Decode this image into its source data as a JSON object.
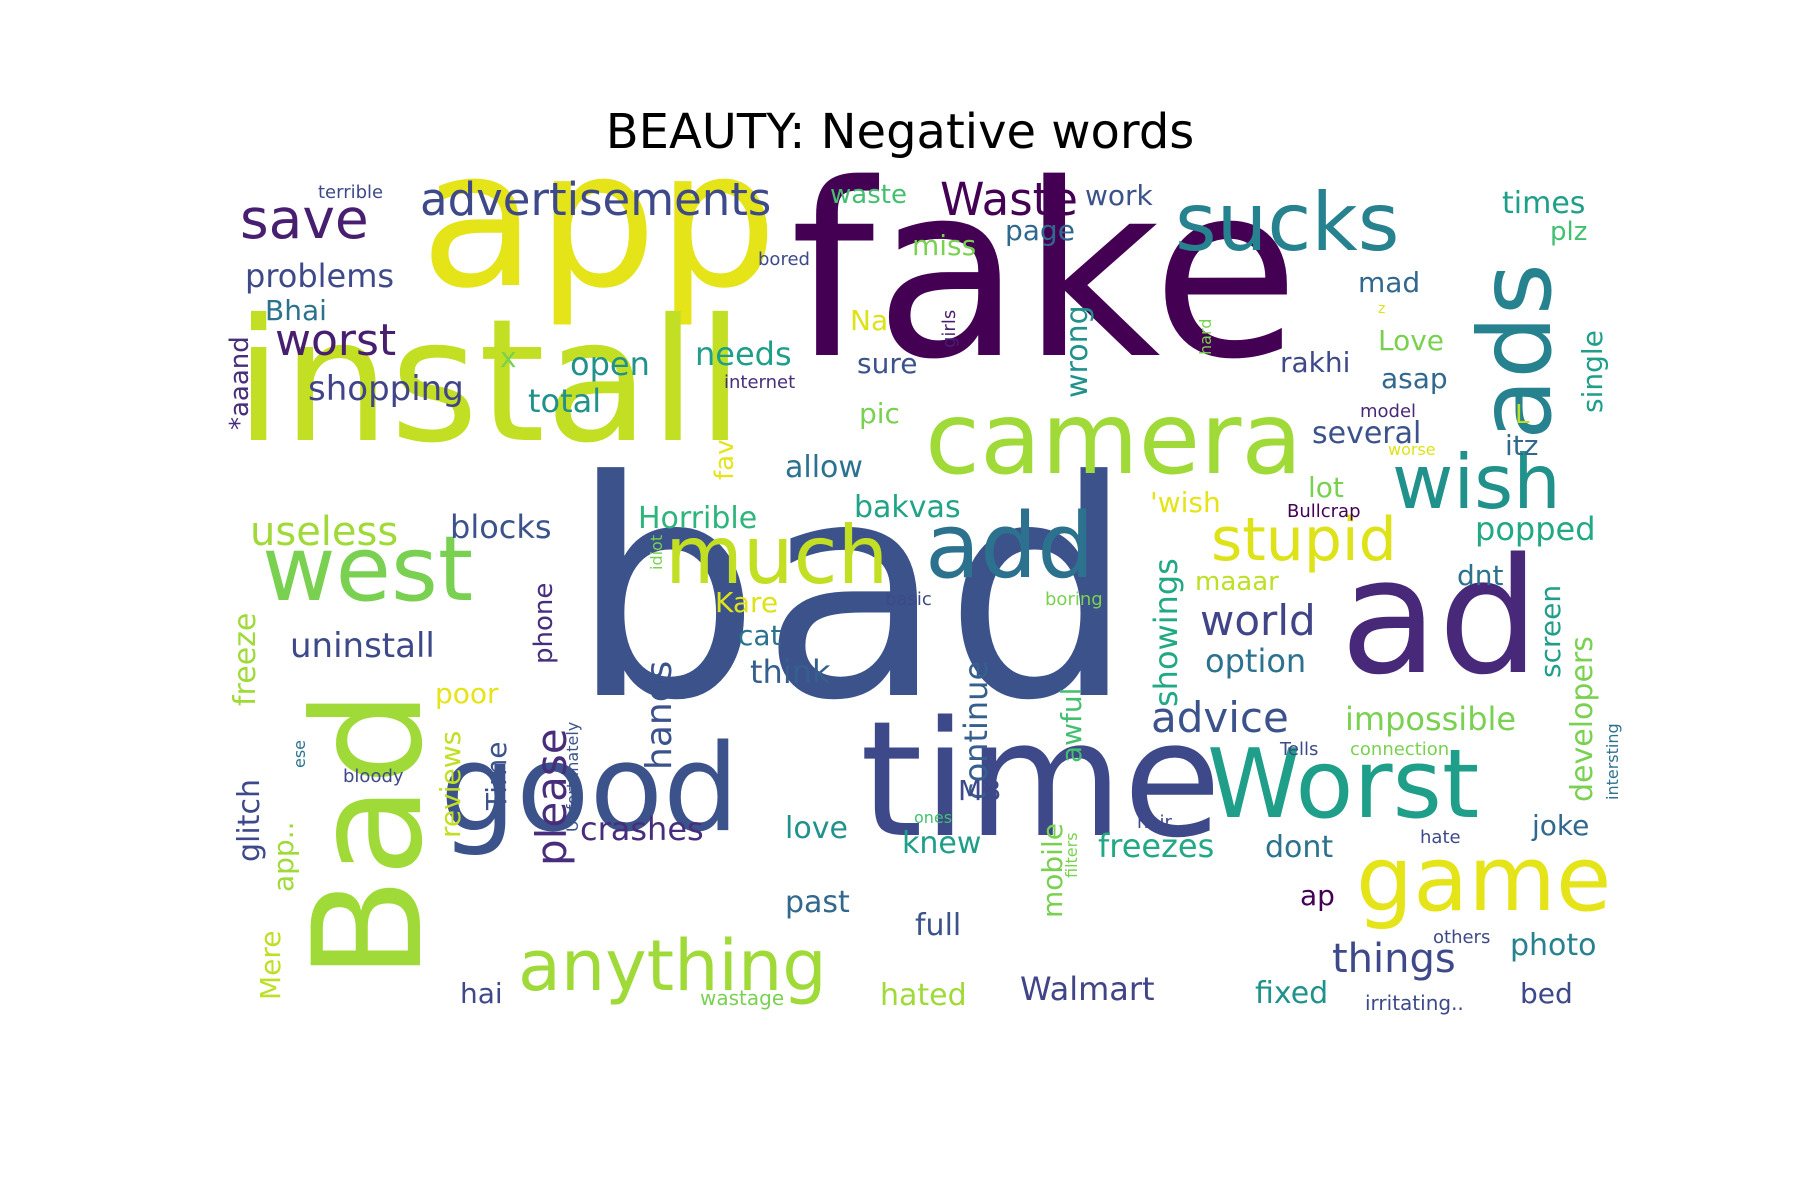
{
  "title": "BEAUTY: Negative words",
  "words": [
    {
      "text": "bad",
      "color": "#3b528b"
    },
    {
      "text": "fake",
      "color": "#440154"
    },
    {
      "text": "app",
      "color": "#e5e419"
    },
    {
      "text": "install",
      "color": "#c2df23"
    },
    {
      "text": "Bad",
      "color": "#a0da39"
    },
    {
      "text": "time",
      "color": "#3e4989"
    },
    {
      "text": "ad",
      "color": "#482878"
    },
    {
      "text": "good",
      "color": "#3b528b"
    },
    {
      "text": "ads",
      "color": "#26828e"
    },
    {
      "text": "camera",
      "color": "#a0da39"
    },
    {
      "text": "west",
      "color": "#7ad151"
    },
    {
      "text": "Worst",
      "color": "#1f9e89"
    },
    {
      "text": "game",
      "color": "#e5e419"
    },
    {
      "text": "add",
      "color": "#2c728e"
    },
    {
      "text": "much",
      "color": "#c2df23"
    },
    {
      "text": "sucks",
      "color": "#26828e"
    },
    {
      "text": "wish",
      "color": "#21918c"
    },
    {
      "text": "anything",
      "color": "#a0da39"
    },
    {
      "text": "stupid",
      "color": "#dde318"
    },
    {
      "text": "save",
      "color": "#481f70"
    },
    {
      "text": "advertisements",
      "color": "#3e4989"
    },
    {
      "text": "Waste",
      "color": "#440154"
    },
    {
      "text": "please",
      "color": "#472d7b"
    },
    {
      "text": "things",
      "color": "#3e4989"
    },
    {
      "text": "world",
      "color": "#414487"
    },
    {
      "text": "advice",
      "color": "#3b528b"
    },
    {
      "text": "worst",
      "color": "#481f70"
    },
    {
      "text": "useless",
      "color": "#a0da39"
    },
    {
      "text": "hangs",
      "color": "#3b528b"
    },
    {
      "text": "continue",
      "color": "#355f8d"
    },
    {
      "text": "developers",
      "color": "#7ad151"
    },
    {
      "text": "glitch",
      "color": "#3e4989"
    },
    {
      "text": "freeze",
      "color": "#a0da39"
    },
    {
      "text": "impossible",
      "color": "#7ad151"
    },
    {
      "text": "showings",
      "color": "#22a884"
    },
    {
      "text": "uninstall",
      "color": "#3e4989"
    },
    {
      "text": "shopping",
      "color": "#414487"
    },
    {
      "text": "problems",
      "color": "#3e4989"
    },
    {
      "text": "blocks",
      "color": "#3b528b"
    },
    {
      "text": "crashes",
      "color": "#472d7b"
    },
    {
      "text": "freezes",
      "color": "#22a884"
    },
    {
      "text": "option",
      "color": "#2c728e"
    },
    {
      "text": "think",
      "color": "#355f8d"
    },
    {
      "text": "popped",
      "color": "#22a884"
    },
    {
      "text": "Walmart",
      "color": "#414487"
    },
    {
      "text": "screen",
      "color": "#1f9e89"
    },
    {
      "text": "several",
      "color": "#3b528b"
    },
    {
      "text": "total",
      "color": "#21918c"
    },
    {
      "text": "open",
      "color": "#21918c"
    },
    {
      "text": "needs",
      "color": "#1f9e89"
    },
    {
      "text": "Horrible",
      "color": "#2fb47c"
    },
    {
      "text": "bakvas",
      "color": "#20a386"
    },
    {
      "text": "allow",
      "color": "#2c728e"
    },
    {
      "text": "wrong",
      "color": "#21918c"
    },
    {
      "text": "single",
      "color": "#1f9e89"
    },
    {
      "text": "times",
      "color": "#1f9e89"
    },
    {
      "text": "awful",
      "color": "#44bf70"
    },
    {
      "text": "mobile",
      "color": "#7ad151"
    },
    {
      "text": "reviews",
      "color": "#c2df23"
    },
    {
      "text": "hated",
      "color": "#a0da39"
    },
    {
      "text": "fixed",
      "color": "#21918c"
    },
    {
      "text": "photo",
      "color": "#26828e"
    },
    {
      "text": "knew",
      "color": "#1f9e89"
    },
    {
      "text": "love",
      "color": "#21918c"
    },
    {
      "text": "full",
      "color": "#3b528b"
    },
    {
      "text": "past",
      "color": "#31688e"
    },
    {
      "text": "dont",
      "color": "#2c728e"
    },
    {
      "text": "joke",
      "color": "#31688e"
    },
    {
      "text": "Time",
      "color": "#3b528b"
    },
    {
      "text": "Bhai",
      "color": "#2c728e"
    },
    {
      "text": "Love",
      "color": "#7ad151"
    },
    {
      "text": "asap",
      "color": "#31688e"
    },
    {
      "text": "rakhi",
      "color": "#3e4989"
    },
    {
      "text": "lot",
      "color": "#7ad151"
    },
    {
      "text": "miss",
      "color": "#7ad151"
    },
    {
      "text": "page",
      "color": "#31688e"
    },
    {
      "text": "work",
      "color": "#3b528b"
    },
    {
      "text": "waste",
      "color": "#44bf70"
    },
    {
      "text": "mad",
      "color": "#31688e"
    },
    {
      "text": "plz",
      "color": "#44bf70"
    },
    {
      "text": "Kare",
      "color": "#dde318"
    },
    {
      "text": "cat",
      "color": "#2c728e"
    },
    {
      "text": "poor",
      "color": "#e5e419"
    },
    {
      "text": "app..",
      "color": "#a0da39"
    },
    {
      "text": "Mere",
      "color": "#bddf26"
    },
    {
      "text": "hai",
      "color": "#3e4989"
    },
    {
      "text": "bed",
      "color": "#3e4989"
    },
    {
      "text": "itz",
      "color": "#31688e"
    },
    {
      "text": "dnt",
      "color": "#2c728e"
    },
    {
      "text": "maaar",
      "color": "#bddf26"
    },
    {
      "text": "'wish",
      "color": "#e5e419"
    },
    {
      "text": "MB",
      "color": "#3e4989"
    },
    {
      "text": "ap",
      "color": "#440154"
    },
    {
      "text": "phone",
      "color": "#472d7b"
    },
    {
      "text": "*aaand",
      "color": "#472d7b"
    },
    {
      "text": "Na",
      "color": "#dde318"
    },
    {
      "text": "pic",
      "color": "#7ad151"
    },
    {
      "text": "sure",
      "color": "#3b528b"
    },
    {
      "text": "fav",
      "color": "#e5e419"
    },
    {
      "text": "x",
      "color": "#7ad151"
    },
    {
      "text": "L",
      "color": "#bddf26"
    },
    {
      "text": "Unfortunately",
      "color": "#3b528b"
    },
    {
      "text": "terrible",
      "color": "#3e4989"
    },
    {
      "text": "bored",
      "color": "#3e4989"
    },
    {
      "text": "internet",
      "color": "#472d7b"
    },
    {
      "text": "girls",
      "color": "#481f70"
    },
    {
      "text": "z",
      "color": "#dde318"
    },
    {
      "text": "hard",
      "color": "#7ad151"
    },
    {
      "text": "model",
      "color": "#482878"
    },
    {
      "text": "worse",
      "color": "#dde318"
    },
    {
      "text": "Bullcrap",
      "color": "#440154"
    },
    {
      "text": "idiot",
      "color": "#7ad151"
    },
    {
      "text": "basic",
      "color": "#3e4989"
    },
    {
      "text": "boring",
      "color": "#7ad151"
    },
    {
      "text": "ese",
      "color": "#2c728e"
    },
    {
      "text": "bloody",
      "color": "#3e4989"
    },
    {
      "text": "Tells",
      "color": "#3e4989"
    },
    {
      "text": "connection",
      "color": "#7ad151"
    },
    {
      "text": "intersting",
      "color": "#2c728e"
    },
    {
      "text": "hair",
      "color": "#3e4989"
    },
    {
      "text": "hate",
      "color": "#3e4989"
    },
    {
      "text": "ones",
      "color": "#44bf70"
    },
    {
      "text": "filters",
      "color": "#7ad151"
    },
    {
      "text": "others",
      "color": "#3e4989"
    },
    {
      "text": "wastage",
      "color": "#7ad151"
    },
    {
      "text": "irritating..",
      "color": "#3e4989"
    }
  ]
}
